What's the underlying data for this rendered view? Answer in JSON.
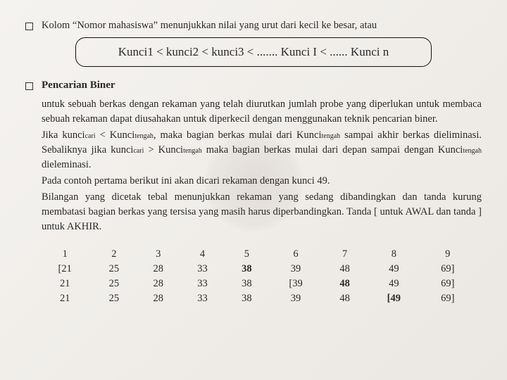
{
  "line1": "Kolom “Nomor mahasiswa” menunjukkan nilai yang urut dari kecil ke besar, atau",
  "formula": "Kunci1 < kunci2 < kunci3 < ....... Kunci I < ...... Kunci n",
  "section_title": "Pencarian Biner",
  "para1": "untuk sebuah berkas dengan rekaman yang telah diurutkan jumlah probe yang diperlukan untuk membaca sebuah rekaman dapat diusahakan untuk diperkecil dengan menggunakan teknik pencarian biner.",
  "para2_a": "Jika kunci",
  "para2_b": " < Kunci",
  "para2_c": ", maka bagian berkas mulai dari Kunci",
  "para2_d": " sampai akhir berkas dieliminasi. Sebaliknya jika kunci",
  "para2_e": " > Kunci",
  "para2_f": " maka bagian berkas mulai dari depan sampai dengan Kunci",
  "para2_g": " dieleminasi.",
  "sub_cari": "cari",
  "sub_tengah": "tengah",
  "para3": "Pada contoh pertama berikut ini akan dicari rekaman dengan kunci 49.",
  "para4": "Bilangan yang dicetak tebal menunjukkan rekaman yang sedang dibandingkan dan tanda kurung membatasi bagian berkas yang tersisa yang masih harus diperbandingkan. Tanda [ untuk AWAL dan tanda ] untuk AKHIR.",
  "table": {
    "header": [
      "1",
      "2",
      "3",
      "4",
      "5",
      "6",
      "7",
      "8",
      "9"
    ],
    "rows": [
      [
        {
          "t": "[21"
        },
        {
          "t": "25"
        },
        {
          "t": "28"
        },
        {
          "t": "33"
        },
        {
          "t": "38",
          "b": true
        },
        {
          "t": "39"
        },
        {
          "t": "48"
        },
        {
          "t": "49"
        },
        {
          "t": "69]"
        }
      ],
      [
        {
          "t": "21"
        },
        {
          "t": "25"
        },
        {
          "t": "28"
        },
        {
          "t": "33"
        },
        {
          "t": "38"
        },
        {
          "t": "[39"
        },
        {
          "t": "48",
          "b": true
        },
        {
          "t": "49"
        },
        {
          "t": "69]"
        }
      ],
      [
        {
          "t": "21"
        },
        {
          "t": "25"
        },
        {
          "t": "28"
        },
        {
          "t": "33"
        },
        {
          "t": "38"
        },
        {
          "t": "39"
        },
        {
          "t": "48"
        },
        {
          "t": "[49",
          "b": true
        },
        {
          "t": "69]"
        }
      ]
    ]
  }
}
